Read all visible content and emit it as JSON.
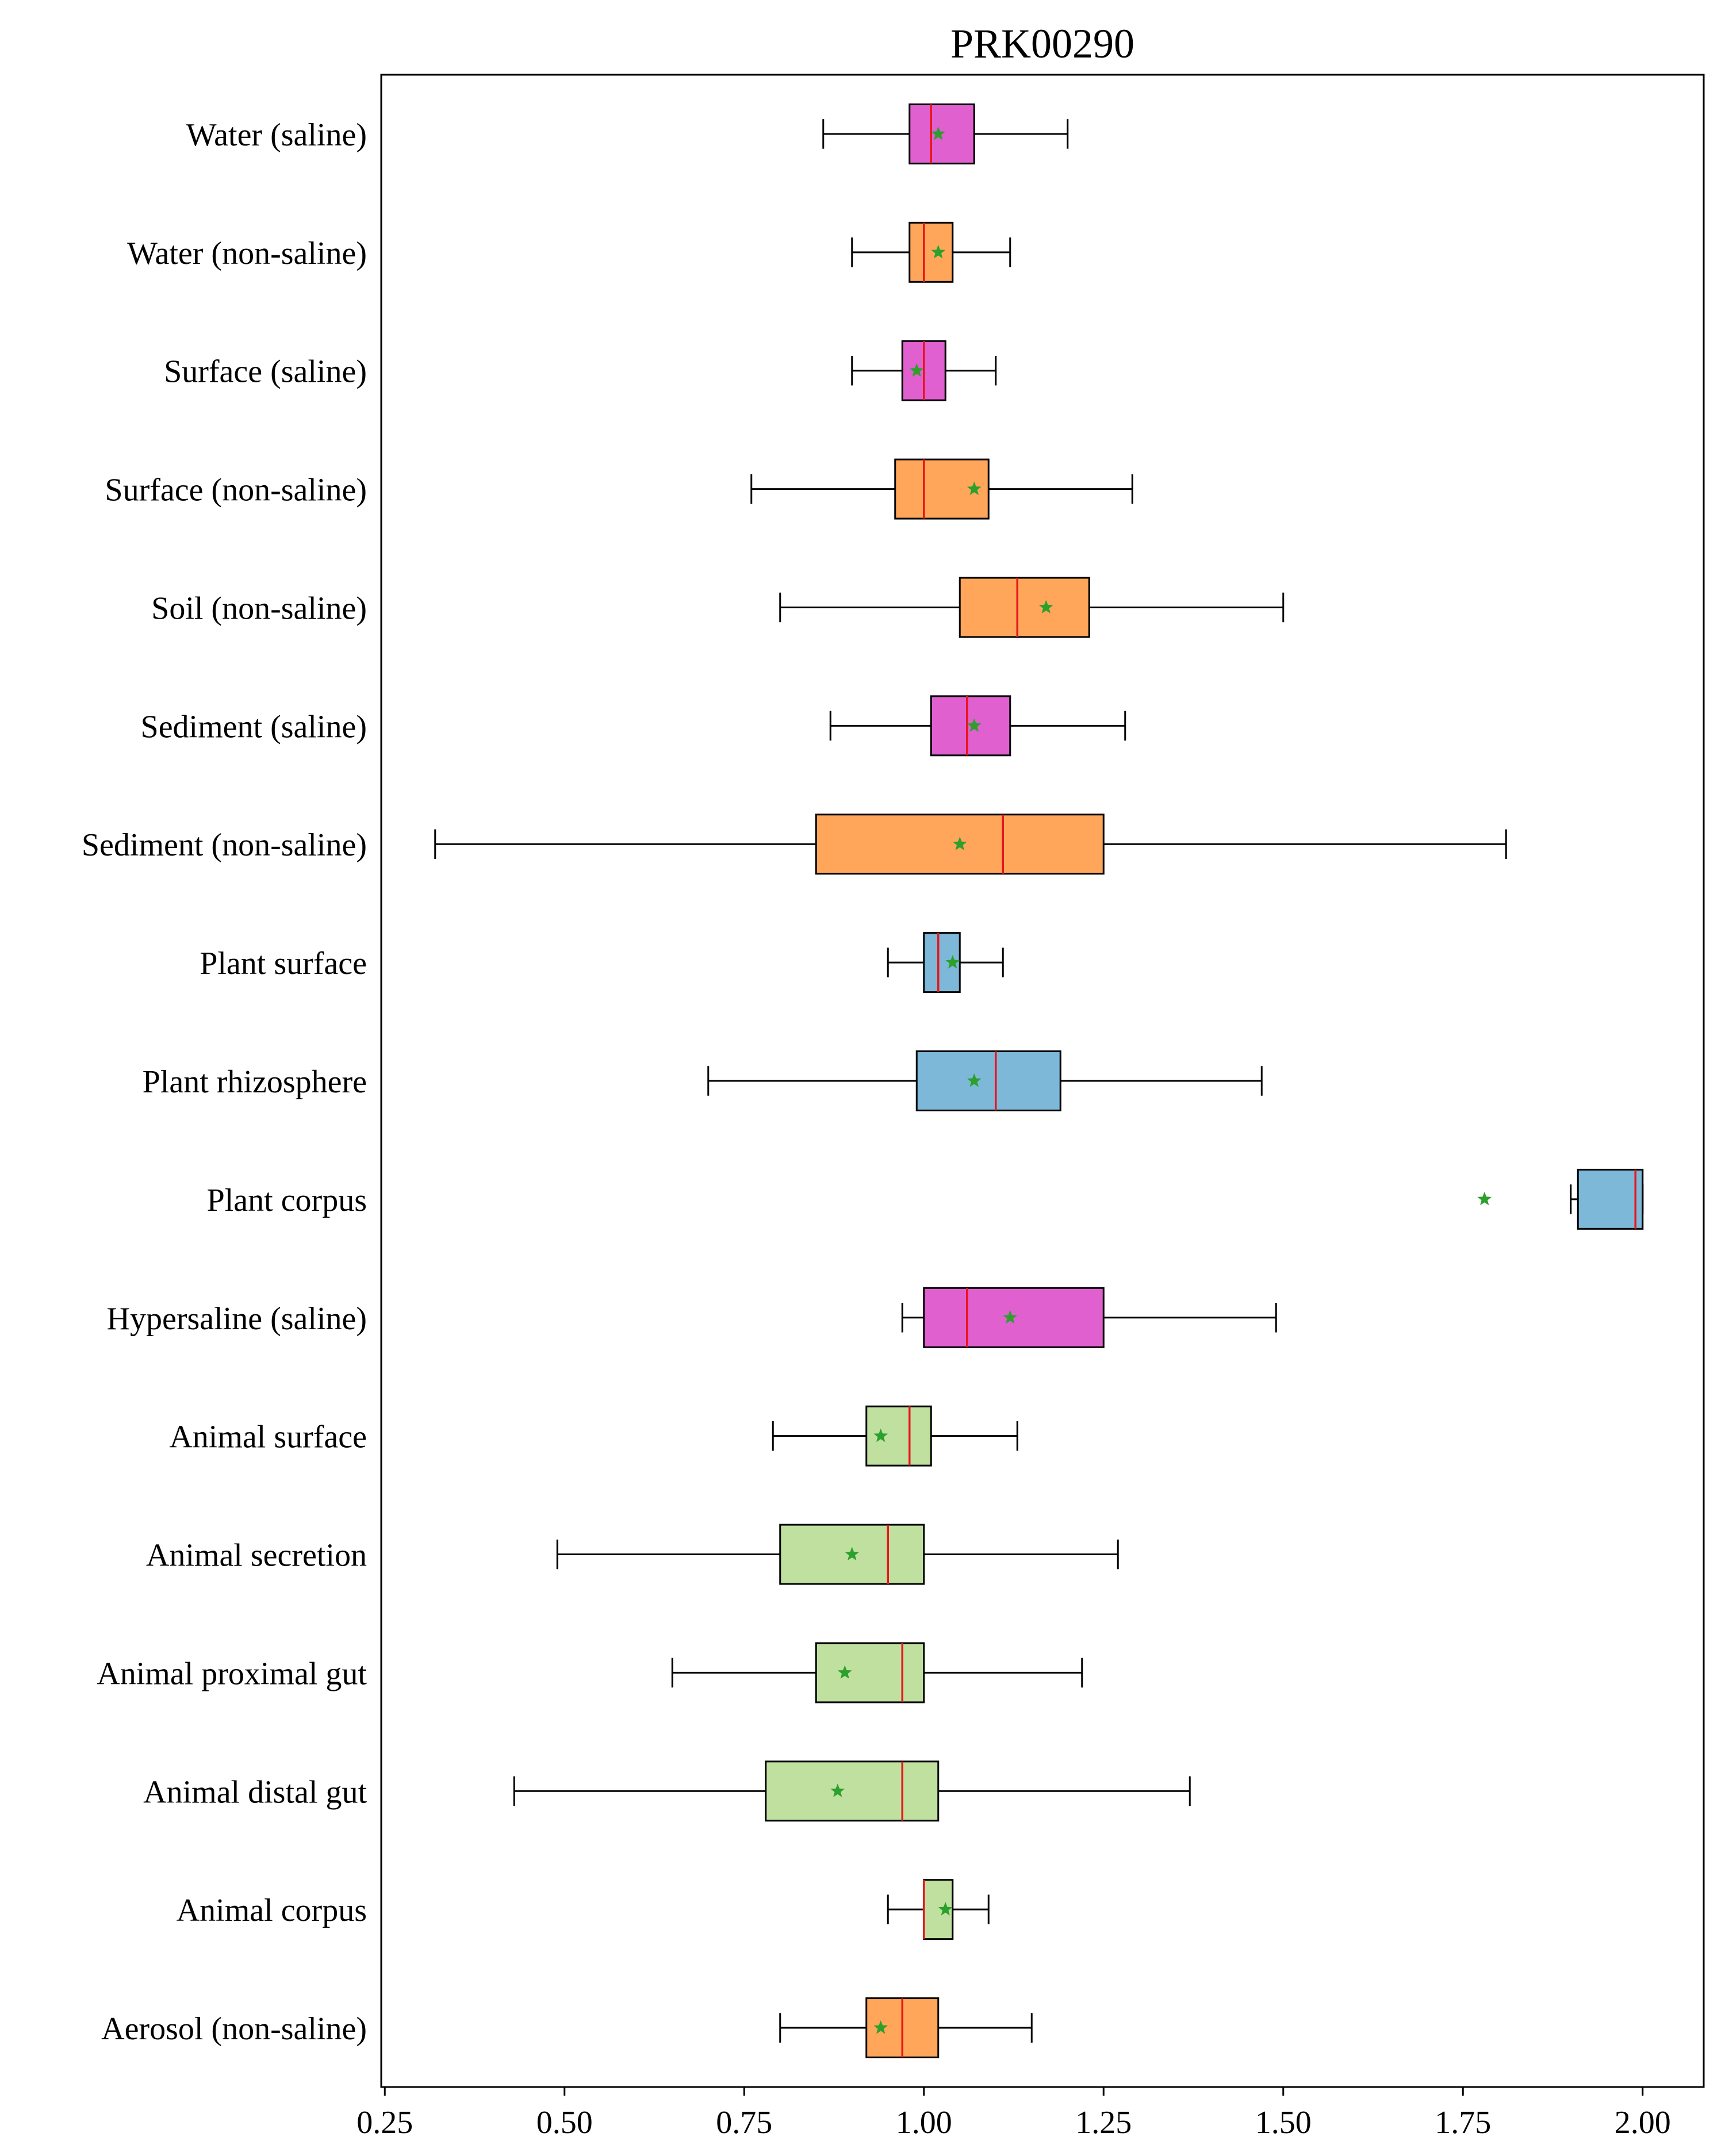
{
  "chart_data": {
    "type": "boxplot",
    "orientation": "horizontal",
    "title": "PRK00290",
    "xlabel": "",
    "ylabel": "",
    "xlim": [
      0.245,
      2.085
    ],
    "x_ticks": [
      0.25,
      0.5,
      0.75,
      1.0,
      1.25,
      1.5,
      1.75,
      2.0
    ],
    "x_tick_labels": [
      "0.25",
      "0.50",
      "0.75",
      "1.00",
      "1.25",
      "1.50",
      "1.75",
      "2.00"
    ],
    "grid": false,
    "legend": "none",
    "styles": {
      "median_color": "#e8151b",
      "mean_marker_color": "#2ca02c",
      "mean_marker": "star",
      "box_edge_color": "#000000"
    },
    "categories": [
      {
        "label": "Water (saline)",
        "whisker_low": 0.86,
        "q1": 0.98,
        "median": 1.01,
        "q3": 1.07,
        "whisker_high": 1.2,
        "mean": 1.02,
        "color": "#e060d0"
      },
      {
        "label": "Water (non-saline)",
        "whisker_low": 0.9,
        "q1": 0.98,
        "median": 1.0,
        "q3": 1.04,
        "whisker_high": 1.12,
        "mean": 1.02,
        "color": "#ffa65a"
      },
      {
        "label": "Surface (saline)",
        "whisker_low": 0.9,
        "q1": 0.97,
        "median": 1.0,
        "q3": 1.03,
        "whisker_high": 1.1,
        "mean": 0.99,
        "color": "#e060d0"
      },
      {
        "label": "Surface (non-saline)",
        "whisker_low": 0.76,
        "q1": 0.96,
        "median": 1.0,
        "q3": 1.09,
        "whisker_high": 1.29,
        "mean": 1.07,
        "color": "#ffa65a"
      },
      {
        "label": "Soil (non-saline)",
        "whisker_low": 0.8,
        "q1": 1.05,
        "median": 1.13,
        "q3": 1.23,
        "whisker_high": 1.5,
        "mean": 1.17,
        "color": "#ffa65a"
      },
      {
        "label": "Sediment (saline)",
        "whisker_low": 0.87,
        "q1": 1.01,
        "median": 1.06,
        "q3": 1.12,
        "whisker_high": 1.28,
        "mean": 1.07,
        "color": "#e060d0"
      },
      {
        "label": "Sediment (non-saline)",
        "whisker_low": 0.32,
        "q1": 0.85,
        "median": 1.11,
        "q3": 1.25,
        "whisker_high": 1.81,
        "mean": 1.05,
        "color": "#ffa65a"
      },
      {
        "label": "Plant surface",
        "whisker_low": 0.95,
        "q1": 1.0,
        "median": 1.02,
        "q3": 1.05,
        "whisker_high": 1.11,
        "mean": 1.04,
        "color": "#7db8d9"
      },
      {
        "label": "Plant rhizosphere",
        "whisker_low": 0.7,
        "q1": 0.99,
        "median": 1.1,
        "q3": 1.19,
        "whisker_high": 1.47,
        "mean": 1.07,
        "color": "#7db8d9"
      },
      {
        "label": "Plant corpus",
        "whisker_low": 1.9,
        "q1": 1.91,
        "median": 1.99,
        "q3": 2.0,
        "whisker_high": 2.0,
        "mean": 1.78,
        "color": "#7db8d9"
      },
      {
        "label": "Hypersaline (saline)",
        "whisker_low": 0.97,
        "q1": 1.0,
        "median": 1.06,
        "q3": 1.25,
        "whisker_high": 1.49,
        "mean": 1.12,
        "color": "#e060d0"
      },
      {
        "label": "Animal surface",
        "whisker_low": 0.79,
        "q1": 0.92,
        "median": 0.98,
        "q3": 1.01,
        "whisker_high": 1.13,
        "mean": 0.94,
        "color": "#c0e0a0"
      },
      {
        "label": "Animal secretion",
        "whisker_low": 0.49,
        "q1": 0.8,
        "median": 0.95,
        "q3": 1.0,
        "whisker_high": 1.27,
        "mean": 0.9,
        "color": "#c0e0a0"
      },
      {
        "label": "Animal proximal gut",
        "whisker_low": 0.65,
        "q1": 0.85,
        "median": 0.97,
        "q3": 1.0,
        "whisker_high": 1.22,
        "mean": 0.89,
        "color": "#c0e0a0"
      },
      {
        "label": "Animal distal gut",
        "whisker_low": 0.43,
        "q1": 0.78,
        "median": 0.97,
        "q3": 1.02,
        "whisker_high": 1.37,
        "mean": 0.88,
        "color": "#c0e0a0"
      },
      {
        "label": "Animal corpus",
        "whisker_low": 0.95,
        "q1": 1.0,
        "median": 1.0,
        "q3": 1.04,
        "whisker_high": 1.09,
        "mean": 1.03,
        "color": "#c0e0a0"
      },
      {
        "label": "Aerosol (non-saline)",
        "whisker_low": 0.8,
        "q1": 0.92,
        "median": 0.97,
        "q3": 1.02,
        "whisker_high": 1.15,
        "mean": 0.94,
        "color": "#ffa65a"
      }
    ]
  }
}
